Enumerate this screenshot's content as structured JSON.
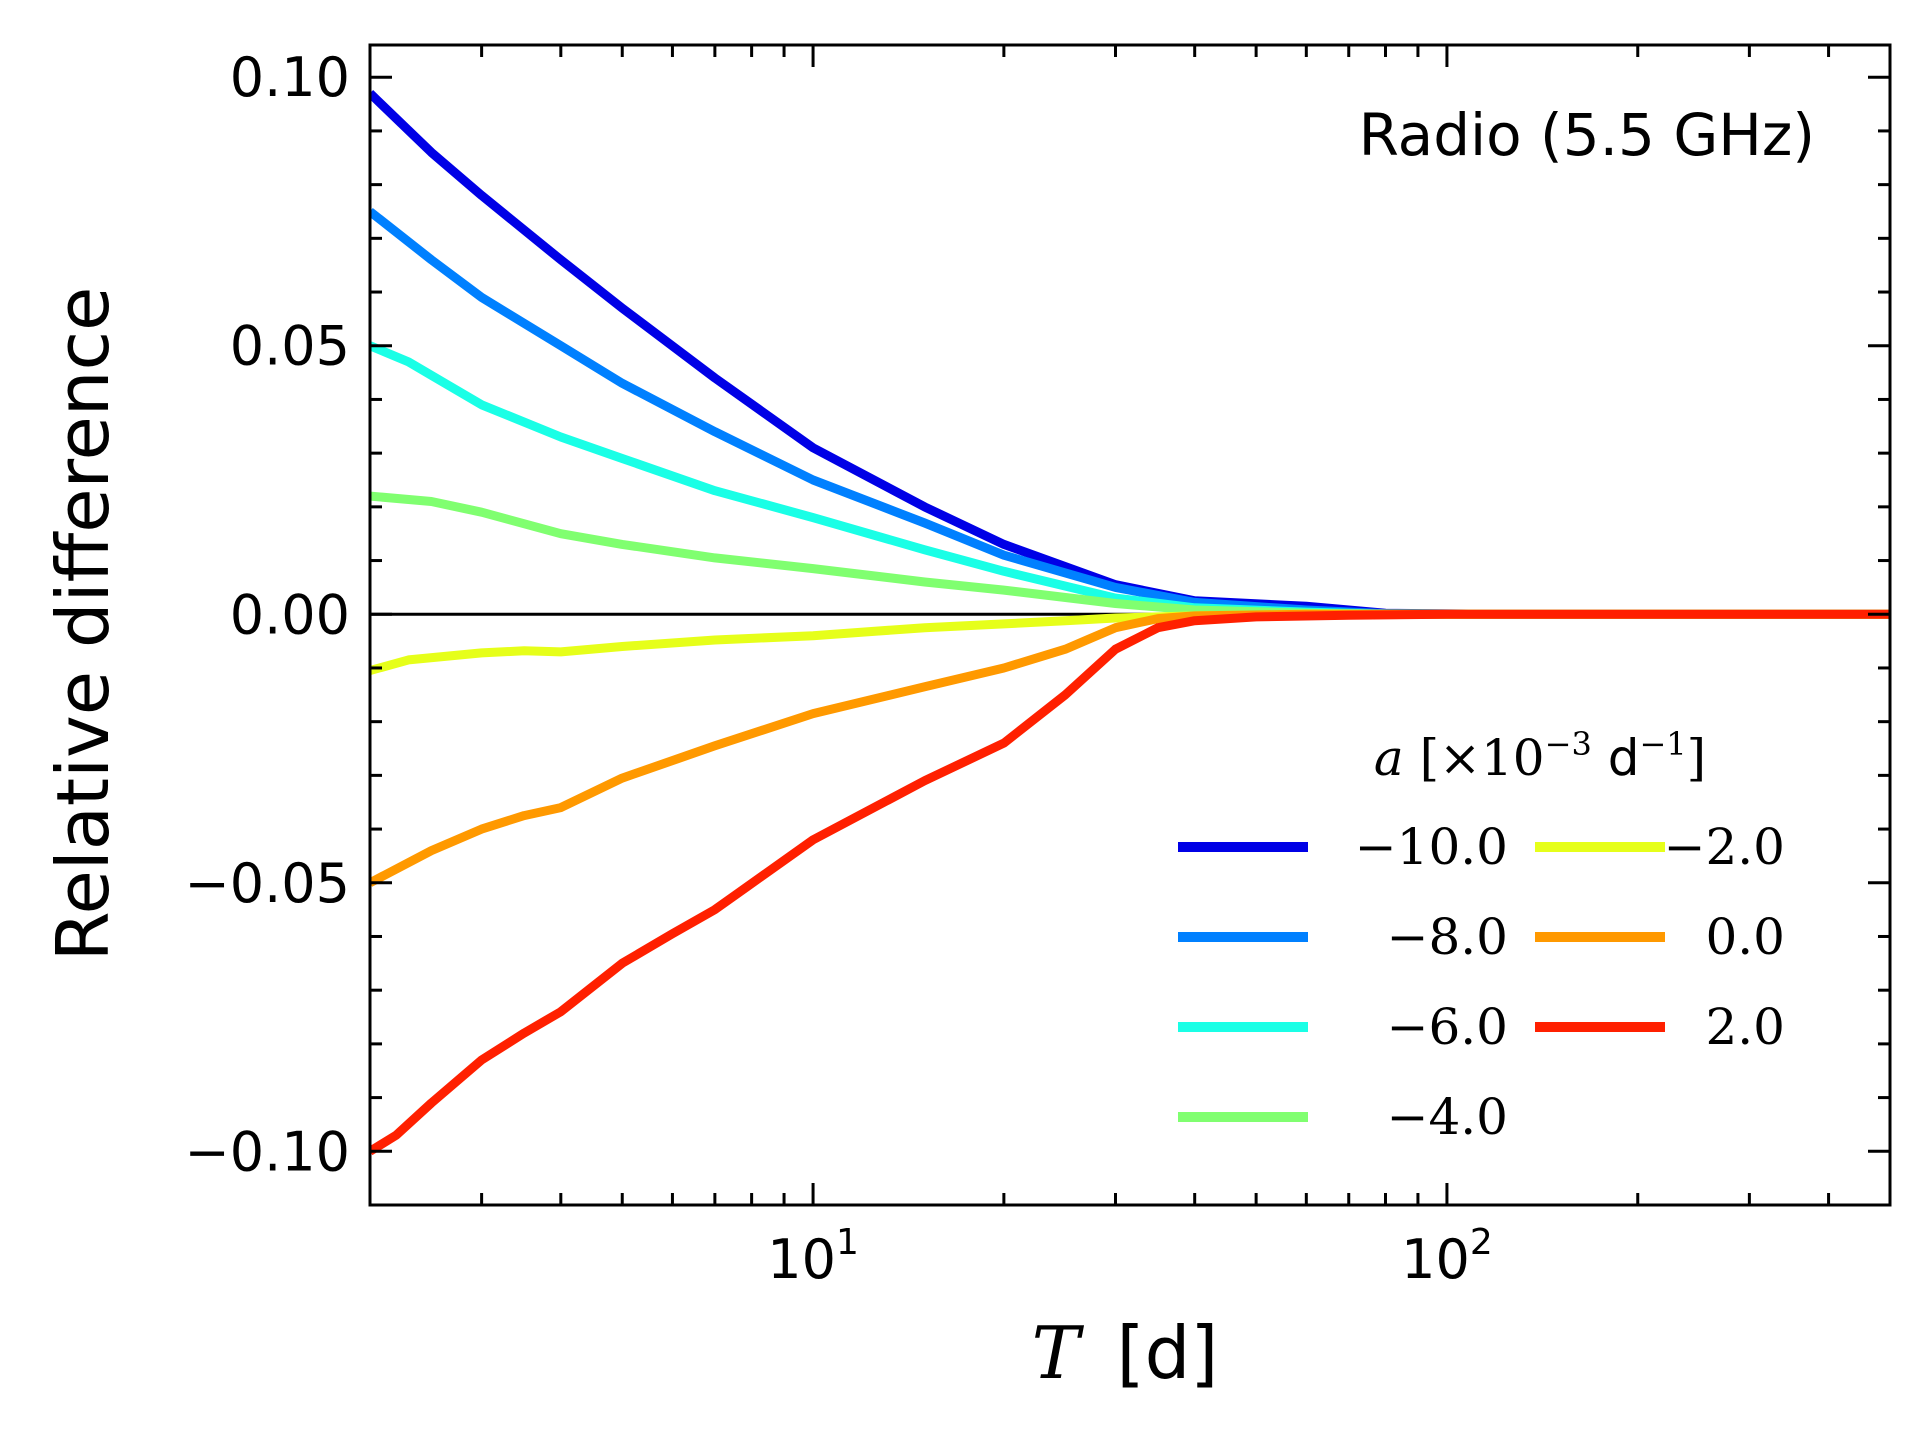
{
  "chart_data": {
    "type": "line",
    "title": "",
    "annotation": "Radio (5.5 GHz)",
    "xlabel": "T [d]",
    "ylabel": "Relative difference",
    "xscale": "log",
    "xlim": [
      2.0,
      500
    ],
    "ylim": [
      -0.11,
      0.106
    ],
    "yticks": [
      0.1,
      0.05,
      0.0,
      -0.05,
      -0.1
    ],
    "ytick_labels": [
      "0.10",
      "0.05",
      "0.00",
      "−0.05",
      "−0.10"
    ],
    "xticks": [
      {
        "base": "10",
        "exp": "1",
        "value": 10
      },
      {
        "base": "10",
        "exp": "2",
        "value": 100
      }
    ],
    "reference_line": {
      "y": 0.0,
      "color": "#000000"
    },
    "legend": {
      "title": "a [×10⁻³ d⁻¹]",
      "title_var": "a",
      "title_rest": "[×10",
      "title_exp": "−3",
      "title_unit": " d",
      "title_unit_exp": "−1",
      "title_close": "]",
      "placement": "lower-right",
      "columns": 2
    },
    "series": [
      {
        "name": "−10.0",
        "color": "#0000e6",
        "x": [
          2,
          2.5,
          3,
          4,
          5,
          7,
          10,
          15,
          20,
          30,
          40,
          60,
          80,
          120,
          200,
          500
        ],
        "y": [
          0.097,
          0.086,
          0.078,
          0.066,
          0.057,
          0.044,
          0.031,
          0.02,
          0.013,
          0.0055,
          0.0025,
          0.0015,
          0.0002,
          0.0,
          0.0,
          0.0
        ]
      },
      {
        "name": "−8.0",
        "color": "#0080ff",
        "x": [
          2,
          2.5,
          3,
          4,
          5,
          7,
          10,
          15,
          20,
          30,
          40,
          60,
          80,
          120,
          200,
          500
        ],
        "y": [
          0.075,
          0.066,
          0.059,
          0.05,
          0.043,
          0.034,
          0.025,
          0.017,
          0.011,
          0.005,
          0.0022,
          0.0008,
          0.0001,
          0.0,
          0.0,
          0.0
        ]
      },
      {
        "name": "−6.0",
        "color": "#1affe6",
        "x": [
          2,
          2.3,
          3,
          4,
          5,
          7,
          10,
          15,
          20,
          30,
          40,
          60,
          80,
          120,
          200,
          500
        ],
        "y": [
          0.05,
          0.047,
          0.039,
          0.033,
          0.029,
          0.023,
          0.018,
          0.012,
          0.008,
          0.003,
          0.0012,
          0.0004,
          0.0,
          0.0,
          0.0,
          0.0
        ]
      },
      {
        "name": "−4.0",
        "color": "#80ff70",
        "x": [
          2,
          2.5,
          3,
          4,
          5,
          7,
          10,
          15,
          20,
          30,
          40,
          60,
          80,
          120,
          200,
          500
        ],
        "y": [
          0.022,
          0.021,
          0.019,
          0.015,
          0.013,
          0.0105,
          0.0085,
          0.006,
          0.0045,
          0.002,
          0.0008,
          0.0002,
          0.0,
          0.0,
          0.0,
          0.0
        ]
      },
      {
        "name": "−2.0",
        "color": "#e6ff1a",
        "x": [
          2,
          2.3,
          3,
          3.5,
          4,
          5,
          7,
          10,
          15,
          20,
          25,
          30,
          40,
          60,
          100,
          200,
          500
        ],
        "y": [
          -0.0105,
          -0.0085,
          -0.0072,
          -0.0068,
          -0.007,
          -0.006,
          -0.0048,
          -0.004,
          -0.0025,
          -0.0018,
          -0.0012,
          -0.0007,
          -0.0003,
          0.0,
          0.0,
          0.0,
          0.0
        ]
      },
      {
        "name": "0.0",
        "color": "#ff9900",
        "x": [
          2,
          2.5,
          3,
          3.5,
          4,
          5,
          7,
          10,
          15,
          20,
          25,
          30,
          35,
          40,
          60,
          100,
          200,
          500
        ],
        "y": [
          -0.05,
          -0.044,
          -0.04,
          -0.0375,
          -0.036,
          -0.0305,
          -0.0245,
          -0.0185,
          -0.0135,
          -0.01,
          -0.0065,
          -0.0025,
          -0.0008,
          -0.0003,
          0.0,
          0.0,
          0.0,
          0.0
        ]
      },
      {
        "name": "2.0",
        "color": "#ff2000",
        "x": [
          2,
          2.2,
          2.5,
          3,
          3.5,
          4,
          5,
          6,
          7,
          10,
          15,
          20,
          25,
          30,
          35,
          40,
          50,
          70,
          100,
          200,
          500
        ],
        "y": [
          -0.1,
          -0.097,
          -0.091,
          -0.083,
          -0.078,
          -0.074,
          -0.065,
          -0.0595,
          -0.055,
          -0.042,
          -0.031,
          -0.024,
          -0.015,
          -0.0065,
          -0.0025,
          -0.0012,
          -0.0005,
          -0.0002,
          0.0,
          0.0,
          0.0
        ]
      }
    ]
  }
}
